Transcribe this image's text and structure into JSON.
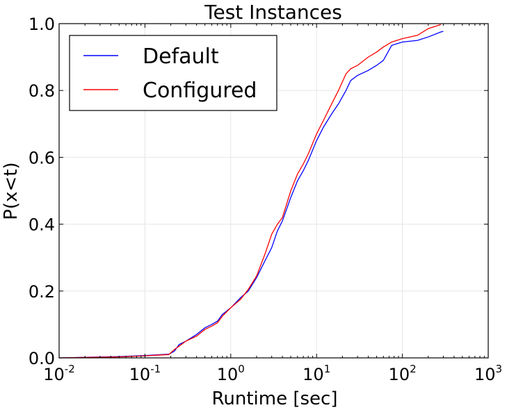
{
  "chart_data": {
    "type": "line",
    "title": "Test Instances",
    "xlabel": "Runtime [sec]",
    "ylabel": "P(x<t)",
    "xscale": "log",
    "xlim": [
      0.01,
      1000
    ],
    "ylim": [
      0.0,
      1.0
    ],
    "grid": true,
    "legend_position": "top-left",
    "x_ticks": [
      {
        "base": "10",
        "exp": "-2",
        "value": 0.01
      },
      {
        "base": "10",
        "exp": "-1",
        "value": 0.1
      },
      {
        "base": "10",
        "exp": "0",
        "value": 1
      },
      {
        "base": "10",
        "exp": "1",
        "value": 10
      },
      {
        "base": "10",
        "exp": "2",
        "value": 100
      },
      {
        "base": "10",
        "exp": "3",
        "value": 1000
      }
    ],
    "y_ticks": [
      {
        "label": "0.0",
        "value": 0.0
      },
      {
        "label": "0.2",
        "value": 0.2
      },
      {
        "label": "0.4",
        "value": 0.4
      },
      {
        "label": "0.6",
        "value": 0.6
      },
      {
        "label": "0.8",
        "value": 0.8
      },
      {
        "label": "1.0",
        "value": 1.0
      }
    ],
    "series": [
      {
        "name": "Default",
        "color": "#0000ff",
        "x": [
          0.01,
          0.05,
          0.1,
          0.19,
          0.22,
          0.25,
          0.3,
          0.4,
          0.5,
          0.6,
          0.7,
          0.8,
          1.0,
          1.3,
          1.6,
          2.0,
          2.5,
          3.0,
          3.5,
          4.0,
          5.0,
          6.0,
          7.0,
          8.0,
          10.0,
          12.0,
          15.0,
          18.0,
          22.0,
          25.0,
          30.0,
          40.0,
          50.0,
          60.0,
          75.0,
          100.0,
          150.0,
          200.0,
          280.0,
          300.0
        ],
        "y": [
          0.0,
          0.004,
          0.007,
          0.011,
          0.02,
          0.04,
          0.05,
          0.07,
          0.09,
          0.1,
          0.11,
          0.13,
          0.15,
          0.18,
          0.2,
          0.24,
          0.29,
          0.33,
          0.38,
          0.41,
          0.48,
          0.53,
          0.56,
          0.59,
          0.65,
          0.69,
          0.73,
          0.76,
          0.8,
          0.83,
          0.845,
          0.86,
          0.875,
          0.89,
          0.935,
          0.945,
          0.95,
          0.96,
          0.975,
          0.977
        ]
      },
      {
        "name": "Configured",
        "color": "#ff0000",
        "x": [
          0.01,
          0.05,
          0.1,
          0.19,
          0.22,
          0.25,
          0.3,
          0.4,
          0.5,
          0.6,
          0.7,
          0.8,
          1.0,
          1.3,
          1.6,
          2.0,
          2.5,
          3.0,
          3.5,
          4.0,
          5.0,
          6.0,
          7.0,
          8.0,
          10.0,
          12.0,
          15.0,
          18.0,
          22.0,
          25.0,
          30.0,
          40.0,
          50.0,
          60.0,
          75.0,
          100.0,
          150.0,
          200.0,
          280.0
        ],
        "y": [
          0.0,
          0.003,
          0.006,
          0.01,
          0.025,
          0.035,
          0.05,
          0.065,
          0.085,
          0.095,
          0.105,
          0.125,
          0.15,
          0.175,
          0.205,
          0.245,
          0.31,
          0.37,
          0.4,
          0.42,
          0.5,
          0.55,
          0.58,
          0.61,
          0.67,
          0.71,
          0.76,
          0.8,
          0.85,
          0.865,
          0.875,
          0.9,
          0.915,
          0.93,
          0.945,
          0.955,
          0.965,
          0.985,
          0.997
        ]
      }
    ]
  }
}
